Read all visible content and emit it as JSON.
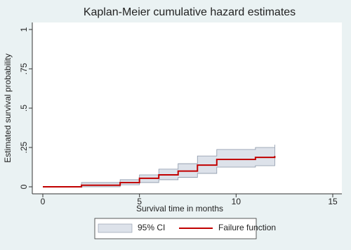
{
  "chart_data": {
    "type": "step",
    "title": "Kaplan-Meier cumulative hazard estimates",
    "x_label": "Survival time in months",
    "y_label": "Estimated survival probability",
    "x": [
      0,
      2,
      4,
      5,
      6,
      7,
      8,
      9,
      11,
      12
    ],
    "series": [
      {
        "name": "95% CI",
        "color": "#dde2ea",
        "lower": [
          0,
          0,
          0.013,
          0.027,
          0.045,
          0.06,
          0.085,
          0.125,
          0.134,
          0.143
        ],
        "upper": [
          0,
          0.027,
          0.045,
          0.076,
          0.112,
          0.147,
          0.196,
          0.237,
          0.25,
          0.268
        ]
      },
      {
        "name": "Failure function",
        "color": "#c10000",
        "values": [
          0,
          0.01,
          0.027,
          0.054,
          0.076,
          0.1,
          0.138,
          0.174,
          0.187,
          0.196
        ]
      }
    ],
    "xlim": [
      0,
      15
    ],
    "xticks": [
      0,
      5,
      10,
      15
    ],
    "ylim": [
      0,
      1
    ],
    "yticks": [
      0,
      {
        "value": 0.25,
        "label": ".25"
      },
      {
        "value": 0.5,
        "label": ".5"
      },
      {
        "value": 0.75,
        "label": ".75"
      },
      1
    ],
    "grid": false,
    "legend_position": "bottom"
  }
}
